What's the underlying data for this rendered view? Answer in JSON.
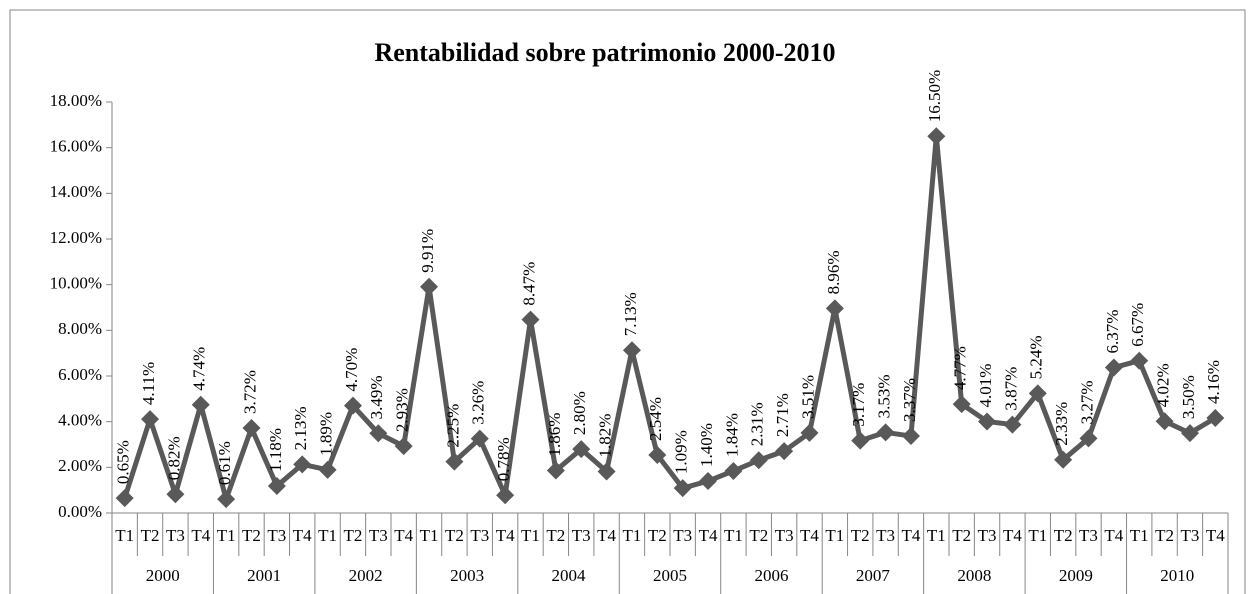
{
  "chart_data": {
    "type": "line",
    "title": "Rentabilidad sobre patrimonio 2000-2010",
    "categories": [
      "T1",
      "T2",
      "T3",
      "T4",
      "T1",
      "T2",
      "T3",
      "T4",
      "T1",
      "T2",
      "T3",
      "T4",
      "T1",
      "T2",
      "T3",
      "T4",
      "T1",
      "T2",
      "T3",
      "T4",
      "T1",
      "T2",
      "T3",
      "T4",
      "T1",
      "T2",
      "T3",
      "T4",
      "T1",
      "T2",
      "T3",
      "T4",
      "T1",
      "T2",
      "T3",
      "T4",
      "T1",
      "T2",
      "T3",
      "T4",
      "T1",
      "T2",
      "T3",
      "T4"
    ],
    "category_groups": [
      "2000",
      "2001",
      "2002",
      "2003",
      "2004",
      "2005",
      "2006",
      "2007",
      "2008",
      "2009",
      "2010"
    ],
    "values": [
      0.65,
      4.11,
      0.82,
      4.74,
      0.61,
      3.72,
      1.18,
      2.13,
      1.89,
      4.7,
      3.49,
      2.93,
      9.91,
      2.25,
      3.26,
      0.78,
      8.47,
      1.86,
      2.8,
      1.82,
      7.13,
      2.54,
      1.09,
      1.4,
      1.84,
      2.31,
      2.71,
      3.51,
      8.96,
      3.17,
      3.53,
      3.37,
      16.5,
      4.77,
      4.01,
      3.87,
      5.24,
      2.33,
      3.27,
      6.37,
      6.67,
      4.02,
      3.5,
      4.16
    ],
    "value_labels": [
      "0.65%",
      "4.11%",
      "0.82%",
      "4.74%",
      "0.61%",
      "3.72%",
      "1.18%",
      "2.13%",
      "1.89%",
      "4.70%",
      "3.49%",
      "2.93%",
      "9.91%",
      "2.25%",
      "3.26%",
      "0.78%",
      "8.47%",
      "1.86%",
      "2.80%",
      "1.82%",
      "7.13%",
      "2.54%",
      "1.09%",
      "1.40%",
      "1.84%",
      "2.31%",
      "2.71%",
      "3.51%",
      "8.96%",
      "3.17%",
      "3.53%",
      "3.37%",
      "16.50%",
      "4.77%",
      "4.01%",
      "3.87%",
      "5.24%",
      "2.33%",
      "3.27%",
      "6.37%",
      "6.67%",
      "4.02%",
      "3.50%",
      "4.16%"
    ],
    "color": "#595959",
    "ylim": [
      0,
      18
    ],
    "yticks": [
      {
        "value": 0,
        "label": "0.00%"
      },
      {
        "value": 2,
        "label": "2.00%"
      },
      {
        "value": 4,
        "label": "4.00%"
      },
      {
        "value": 6,
        "label": "6.00%"
      },
      {
        "value": 8,
        "label": "8.00%"
      },
      {
        "value": 10,
        "label": "10.00%"
      },
      {
        "value": 12,
        "label": "12.00%"
      },
      {
        "value": 14,
        "label": "14.00%"
      },
      {
        "value": 16,
        "label": "16.00%"
      },
      {
        "value": 18,
        "label": "18.00%"
      }
    ]
  }
}
